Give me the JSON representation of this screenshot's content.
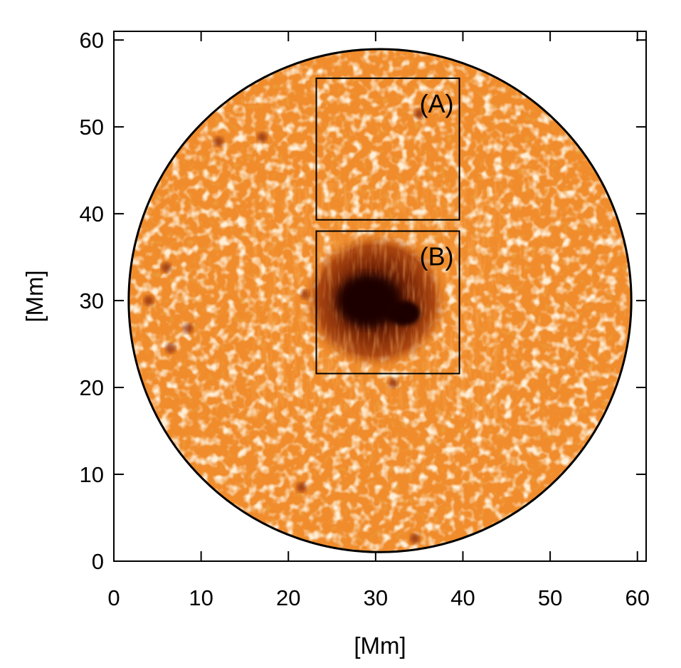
{
  "chart_data": {
    "type": "image",
    "xlabel": "[Mm]",
    "ylabel": "[Mm]",
    "xlim": [
      0,
      61
    ],
    "ylim": [
      0,
      61
    ],
    "x_ticks": [
      0,
      10,
      20,
      30,
      40,
      50,
      60
    ],
    "y_ticks": [
      0,
      10,
      20,
      30,
      40,
      50,
      60
    ],
    "x_tick_labels": [
      "0",
      "10",
      "20",
      "30",
      "40",
      "50",
      "60"
    ],
    "y_tick_labels": [
      "0",
      "10",
      "20",
      "30",
      "40",
      "50",
      "60"
    ],
    "aperture": {
      "center": [
        30.5,
        30
      ],
      "radius": 28.8
    },
    "regions": [
      {
        "label": "(A)",
        "x0": 23.2,
        "x1": 39.6,
        "y0": 39.3,
        "y1": 55.6
      },
      {
        "label": "(B)",
        "x0": 23.2,
        "x1": 39.6,
        "y0": 21.6,
        "y1": 38.0
      }
    ],
    "sunspot": {
      "center": [
        30,
        30
      ],
      "umbra_radius": 3.2,
      "penumbra_radius": 7.5
    },
    "colors": {
      "granulation_base": "#f08c2c",
      "granulation_bright": "#ffdcaf",
      "intergranular": "#d86410",
      "umbra": "#1a0500",
      "penumbra": "#8a2a08",
      "frame": "#000000"
    }
  }
}
